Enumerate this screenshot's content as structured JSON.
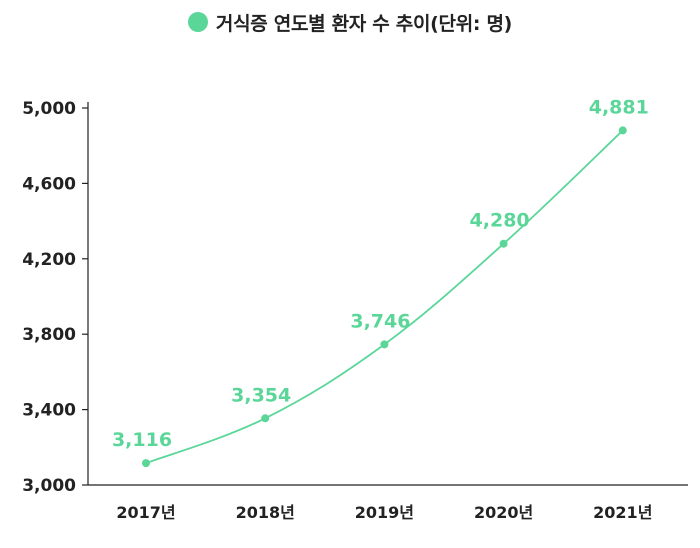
{
  "legend": {
    "label": "거식증 연도별 환자 수 추이(단위: 명)"
  },
  "colors": {
    "series": "#5bd699",
    "label": "#5bd699",
    "axis": "#222222",
    "grid": "#d0d0d0"
  },
  "chart_data": {
    "type": "line",
    "title": "",
    "xlabel": "",
    "ylabel": "",
    "categories": [
      "2017년",
      "2018년",
      "2019년",
      "2020년",
      "2021년"
    ],
    "series": [
      {
        "name": "거식증 연도별 환자 수 추이(단위: 명)",
        "values": [
          3116,
          3354,
          3746,
          4280,
          4881
        ],
        "labels": [
          "3,116",
          "3,354",
          "3,746",
          "4,280",
          "4,881"
        ]
      }
    ],
    "ylim": [
      3000,
      5000
    ],
    "yticks": [
      3000,
      3400,
      3800,
      4200,
      4600,
      5000
    ],
    "ytick_labels": [
      "3,000",
      "3,400",
      "3,800",
      "4,200",
      "4,600",
      "5,000"
    ],
    "grid": false,
    "legend_position": "top-center"
  }
}
